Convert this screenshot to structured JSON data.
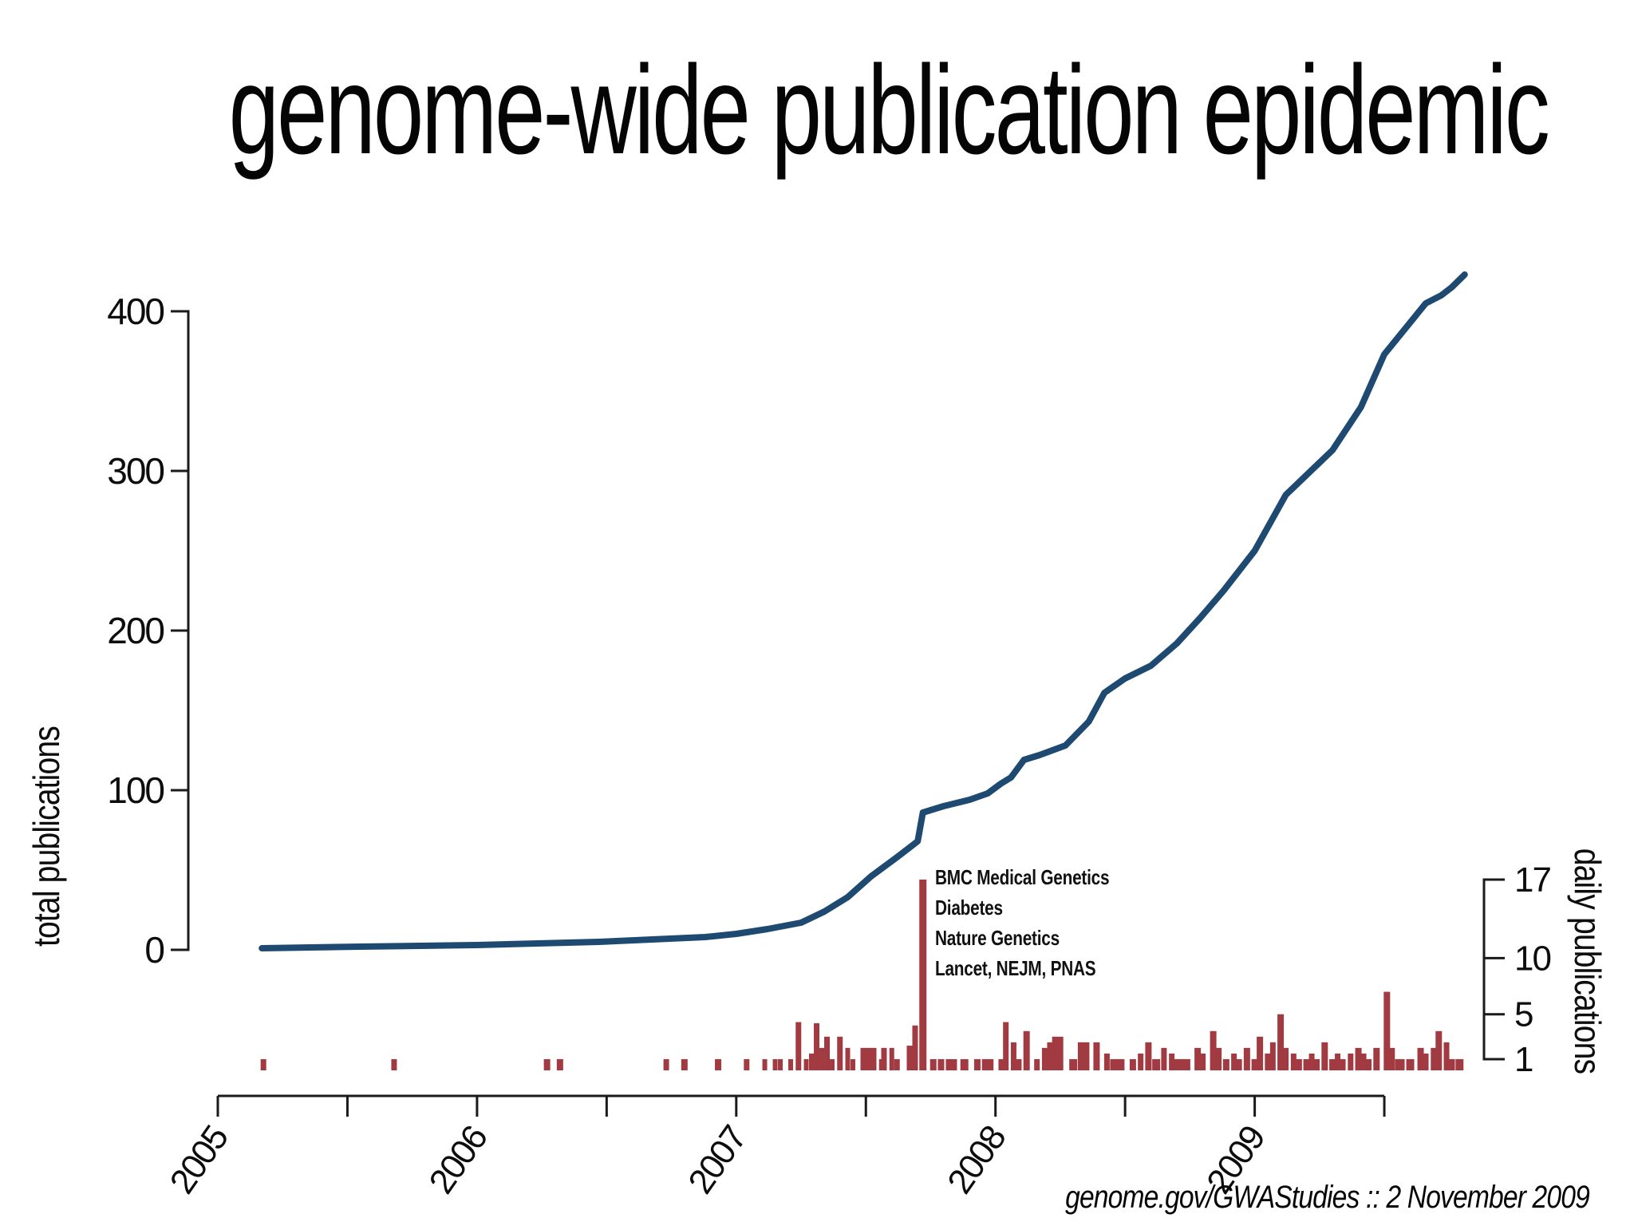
{
  "title": "genome-wide publication epidemic",
  "footer": "genome.gov/GWAStudies :: 2 November 2009",
  "colors": {
    "line": "#1e4a72",
    "bar": "#a23b41",
    "axis": "#1a1a1a",
    "text": "#0d0d0d"
  },
  "chart_data": {
    "type": "line",
    "title": "genome-wide publication epidemic",
    "left_axis": {
      "label": "total publications",
      "ticks": [
        0,
        100,
        200,
        300,
        400
      ],
      "range": [
        0,
        400
      ]
    },
    "right_axis": {
      "label": "daily publications",
      "ticks": [
        1,
        5,
        10,
        17
      ],
      "range": [
        0,
        17
      ]
    },
    "x_axis": {
      "tick_positions": [
        2005,
        2005.5,
        2006,
        2006.5,
        2007,
        2007.5,
        2008,
        2008.5,
        2009,
        2009.5
      ],
      "labeled_years": [
        2005,
        2006,
        2007,
        2008,
        2009
      ],
      "range": [
        2004.8,
        2009.95
      ],
      "grid": false
    },
    "annotation": {
      "lines": [
        "BMC Medical Genetics",
        "Diabetes",
        "Nature Genetics",
        "Lancet, NEJM, PNAS"
      ],
      "at_year": 2007.72,
      "daily_value": 17
    },
    "series": [
      {
        "name": "total publications (cumulative)",
        "type": "line",
        "points": [
          [
            2005.17,
            1
          ],
          [
            2005.55,
            2
          ],
          [
            2006.0,
            3
          ],
          [
            2006.47,
            5
          ],
          [
            2006.88,
            8
          ],
          [
            2007.0,
            10
          ],
          [
            2007.12,
            13
          ],
          [
            2007.25,
            17
          ],
          [
            2007.34,
            24
          ],
          [
            2007.43,
            33
          ],
          [
            2007.52,
            46
          ],
          [
            2007.62,
            58
          ],
          [
            2007.7,
            68
          ],
          [
            2007.72,
            86
          ],
          [
            2007.8,
            90
          ],
          [
            2007.9,
            94
          ],
          [
            2007.97,
            98
          ],
          [
            2008.02,
            104
          ],
          [
            2008.06,
            108
          ],
          [
            2008.11,
            119
          ],
          [
            2008.17,
            122
          ],
          [
            2008.27,
            128
          ],
          [
            2008.36,
            143
          ],
          [
            2008.42,
            161
          ],
          [
            2008.5,
            170
          ],
          [
            2008.6,
            178
          ],
          [
            2008.7,
            192
          ],
          [
            2008.79,
            208
          ],
          [
            2008.88,
            225
          ],
          [
            2009.0,
            250
          ],
          [
            2009.12,
            285
          ],
          [
            2009.3,
            313
          ],
          [
            2009.41,
            340
          ],
          [
            2009.5,
            373
          ],
          [
            2009.66,
            405
          ],
          [
            2009.72,
            410
          ],
          [
            2009.76,
            415
          ],
          [
            2009.81,
            423
          ]
        ]
      },
      {
        "name": "daily publications",
        "type": "bar",
        "points": [
          [
            2005.176,
            1,
            7
          ],
          [
            2005.68,
            1,
            7
          ],
          [
            2006.27,
            1,
            8
          ],
          [
            2006.32,
            1,
            8
          ],
          [
            2006.73,
            1,
            7
          ],
          [
            2006.8,
            1,
            8
          ],
          [
            2006.93,
            1,
            8
          ],
          [
            2007.04,
            1,
            7
          ],
          [
            2007.11,
            1,
            6
          ],
          [
            2007.15,
            1,
            6
          ],
          [
            2007.17,
            1,
            6
          ],
          [
            2007.21,
            1,
            6
          ],
          [
            2007.24,
            4.3,
            7
          ],
          [
            2007.27,
            1,
            6
          ],
          [
            2007.29,
            1.5,
            6
          ],
          [
            2007.31,
            4.2,
            7
          ],
          [
            2007.33,
            2,
            6
          ],
          [
            2007.35,
            3,
            7
          ],
          [
            2007.37,
            1,
            6
          ],
          [
            2007.4,
            3,
            7
          ],
          [
            2007.43,
            2,
            6
          ],
          [
            2007.45,
            1,
            6
          ],
          [
            2007.49,
            2,
            7
          ],
          [
            2007.51,
            2,
            6
          ],
          [
            2007.53,
            2,
            7
          ],
          [
            2007.56,
            1,
            6
          ],
          [
            2007.57,
            2,
            7
          ],
          [
            2007.6,
            2,
            6
          ],
          [
            2007.62,
            1,
            7
          ],
          [
            2007.67,
            2.2,
            8
          ],
          [
            2007.69,
            4,
            7
          ],
          [
            2007.72,
            17,
            9
          ],
          [
            2007.76,
            1,
            8
          ],
          [
            2007.79,
            1,
            8
          ],
          [
            2007.83,
            1,
            14
          ],
          [
            2007.88,
            1,
            10
          ],
          [
            2007.93,
            1,
            8
          ],
          [
            2007.96,
            1,
            8
          ],
          [
            2007.98,
            1,
            8
          ],
          [
            2008.03,
            1,
            12
          ],
          [
            2008.04,
            4.3,
            7
          ],
          [
            2008.07,
            2.5,
            7
          ],
          [
            2008.09,
            1,
            7
          ],
          [
            2008.12,
            3.5,
            8
          ],
          [
            2008.16,
            1,
            7
          ],
          [
            2008.19,
            2,
            7
          ],
          [
            2008.21,
            2.5,
            7
          ],
          [
            2008.24,
            3,
            14
          ],
          [
            2008.3,
            1,
            10
          ],
          [
            2008.33,
            2.5,
            8
          ],
          [
            2008.35,
            2.5,
            8
          ],
          [
            2008.39,
            2.5,
            8
          ],
          [
            2008.43,
            1.5,
            7
          ],
          [
            2008.47,
            1,
            18
          ],
          [
            2008.53,
            1,
            8
          ],
          [
            2008.56,
            1.5,
            7
          ],
          [
            2008.59,
            2.5,
            8
          ],
          [
            2008.62,
            1,
            10
          ],
          [
            2008.65,
            2,
            7
          ],
          [
            2008.68,
            1.5,
            7
          ],
          [
            2008.7,
            1,
            8
          ],
          [
            2008.73,
            1,
            14
          ],
          [
            2008.78,
            2,
            8
          ],
          [
            2008.8,
            1.5,
            7
          ],
          [
            2008.84,
            3.5,
            8
          ],
          [
            2008.86,
            2,
            8
          ],
          [
            2008.89,
            1,
            8
          ],
          [
            2008.92,
            1.5,
            7
          ],
          [
            2008.94,
            1,
            7
          ],
          [
            2008.97,
            2,
            8
          ],
          [
            2009.0,
            1,
            8
          ],
          [
            2009.02,
            3,
            8
          ],
          [
            2009.05,
            1.5,
            7
          ],
          [
            2009.07,
            2.5,
            7
          ],
          [
            2009.1,
            5,
            8
          ],
          [
            2009.12,
            2,
            7
          ],
          [
            2009.15,
            1.5,
            7
          ],
          [
            2009.17,
            1,
            8
          ],
          [
            2009.2,
            1,
            8
          ],
          [
            2009.22,
            1.5,
            7
          ],
          [
            2009.24,
            1,
            7
          ],
          [
            2009.27,
            2.5,
            8
          ],
          [
            2009.3,
            1,
            8
          ],
          [
            2009.32,
            1.5,
            7
          ],
          [
            2009.34,
            1,
            7
          ],
          [
            2009.37,
            1.5,
            7
          ],
          [
            2009.4,
            2,
            8
          ],
          [
            2009.42,
            1.5,
            7
          ],
          [
            2009.44,
            1,
            7
          ],
          [
            2009.47,
            2,
            8
          ],
          [
            2009.51,
            7,
            8
          ],
          [
            2009.53,
            2,
            7
          ],
          [
            2009.56,
            1,
            12
          ],
          [
            2009.6,
            1,
            10
          ],
          [
            2009.64,
            2,
            8
          ],
          [
            2009.66,
            1.5,
            7
          ],
          [
            2009.69,
            2,
            7
          ],
          [
            2009.71,
            3.5,
            8
          ],
          [
            2009.74,
            2.5,
            7
          ],
          [
            2009.76,
            1,
            8
          ],
          [
            2009.79,
            1,
            10
          ]
        ]
      }
    ]
  }
}
